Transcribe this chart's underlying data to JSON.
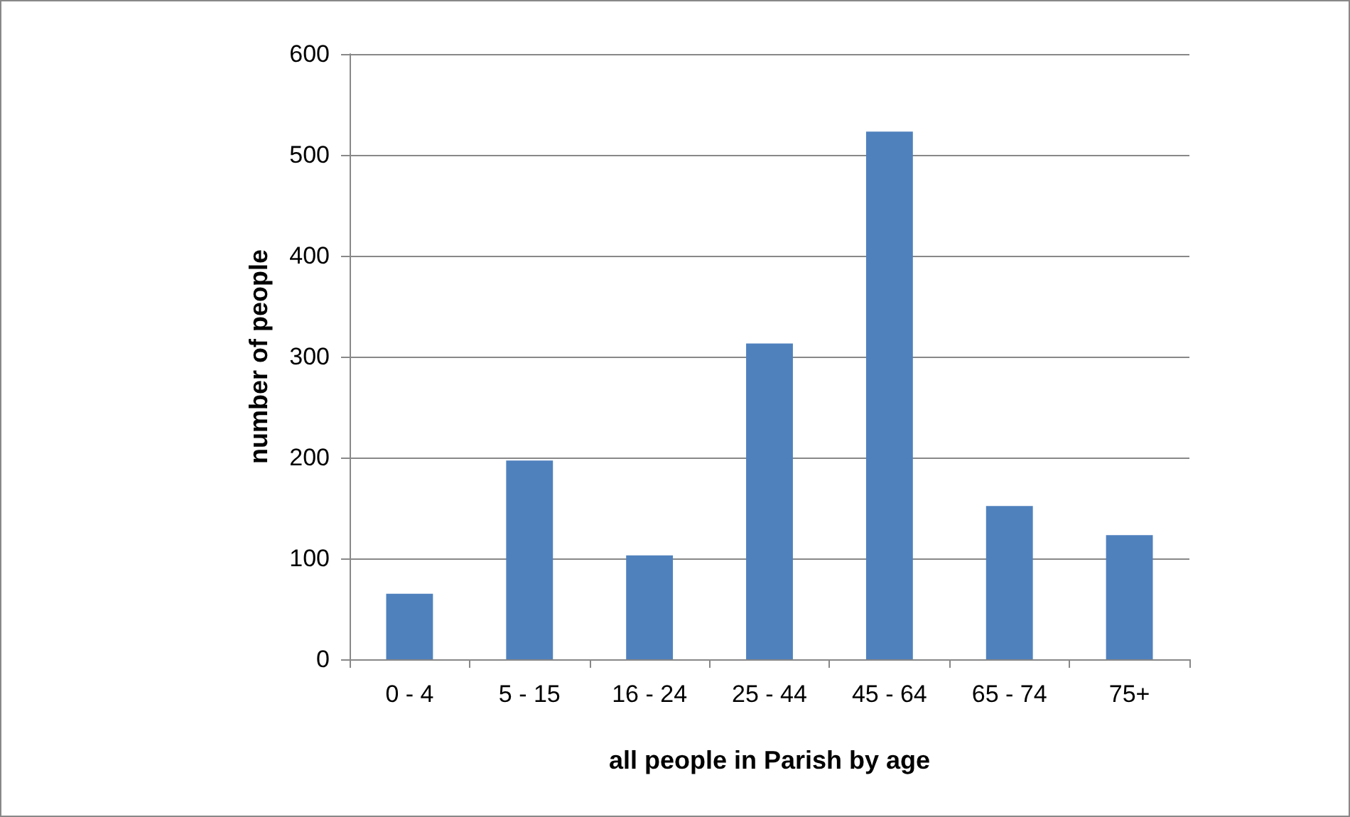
{
  "chart_data": {
    "type": "bar",
    "xlabel": "all people in Parish by age",
    "ylabel": "number of people",
    "categories": [
      "0 - 4",
      "5 - 15",
      "16 - 24",
      "25 - 44",
      "45 - 64",
      "65 - 74",
      "75+"
    ],
    "values": [
      65,
      197,
      103,
      313,
      523,
      152,
      123
    ],
    "color": "#4f81bd",
    "ylim": [
      0,
      600
    ],
    "yticks": [
      0,
      100,
      200,
      300,
      400,
      500,
      600
    ],
    "grid": "y"
  }
}
